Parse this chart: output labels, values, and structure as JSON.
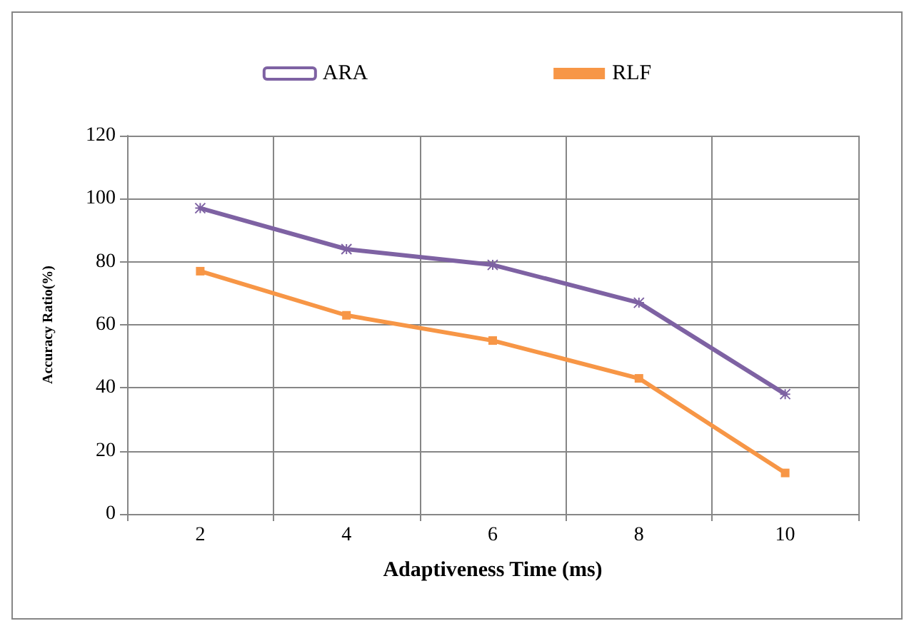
{
  "chart_data": {
    "type": "line",
    "xlabel": "Adaptiveness Time (ms)",
    "ylabel": "Accuracy Ratio(%)",
    "categories": [
      "2",
      "4",
      "6",
      "8",
      "10"
    ],
    "series": [
      {
        "name": "ARA",
        "color": "#7e62a3",
        "marker": "cross",
        "values": [
          97,
          84,
          79,
          67,
          38
        ]
      },
      {
        "name": "RLF",
        "color": "#f79646",
        "marker": "square",
        "values": [
          77,
          63,
          55,
          43,
          13
        ]
      }
    ],
    "ylim": [
      0,
      120
    ],
    "yticks": [
      0,
      20,
      40,
      60,
      80,
      100,
      120
    ],
    "grid": true,
    "legend": "top",
    "line_style": "solid"
  }
}
